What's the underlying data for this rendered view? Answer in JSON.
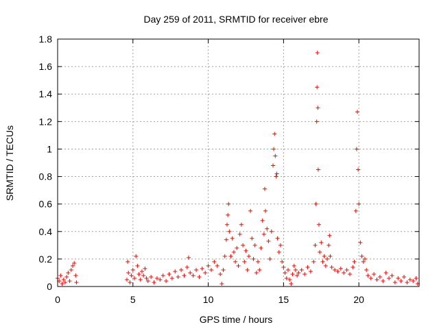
{
  "chart_data": {
    "type": "scatter",
    "title": "Day 259 of 2011, SRMTID for receiver ebre",
    "xlabel": "GPS time / hours",
    "ylabel": "SRMTID / TECUs",
    "xlim": [
      0,
      24
    ],
    "ylim": [
      0,
      1.8
    ],
    "x_ticks": [
      0,
      5,
      10,
      15,
      20
    ],
    "y_ticks": [
      0,
      0.2,
      0.4,
      0.6,
      0.8,
      1,
      1.2,
      1.4,
      1.6,
      1.8
    ],
    "x_tick_labels": [
      "0",
      "5",
      "10",
      "15",
      "20"
    ],
    "y_tick_labels": [
      "0",
      "0.2",
      "0.4",
      "0.6",
      "0.8",
      "1",
      "1.2",
      "1.4",
      "1.6",
      "1.8"
    ],
    "grid": true,
    "marker": "plus",
    "series": [
      {
        "name": "ebre",
        "color": "#ff0000",
        "points": [
          [
            0.0,
            0.06
          ],
          [
            0.1,
            0.04
          ],
          [
            0.2,
            0.08
          ],
          [
            0.3,
            0.02
          ],
          [
            0.4,
            0.05
          ],
          [
            0.5,
            0.03
          ],
          [
            0.6,
            0.07
          ],
          [
            0.7,
            0.1
          ],
          [
            0.8,
            0.04
          ],
          [
            0.9,
            0.12
          ],
          [
            1.0,
            0.15
          ],
          [
            1.1,
            0.17
          ],
          [
            1.2,
            0.08
          ],
          [
            1.25,
            0.03
          ],
          [
            4.6,
            0.05
          ],
          [
            4.65,
            0.18
          ],
          [
            4.7,
            0.1
          ],
          [
            4.8,
            0.03
          ],
          [
            4.9,
            0.08
          ],
          [
            5.0,
            0.12
          ],
          [
            5.1,
            0.06
          ],
          [
            5.2,
            0.22
          ],
          [
            5.3,
            0.15
          ],
          [
            5.4,
            0.09
          ],
          [
            5.5,
            0.05
          ],
          [
            5.6,
            0.11
          ],
          [
            5.7,
            0.08
          ],
          [
            5.8,
            0.13
          ],
          [
            5.9,
            0.06
          ],
          [
            6.0,
            0.04
          ],
          [
            6.2,
            0.07
          ],
          [
            6.4,
            0.03
          ],
          [
            6.6,
            0.06
          ],
          [
            6.8,
            0.05
          ],
          [
            7.0,
            0.08
          ],
          [
            7.2,
            0.04
          ],
          [
            7.4,
            0.09
          ],
          [
            7.6,
            0.06
          ],
          [
            7.8,
            0.11
          ],
          [
            8.0,
            0.07
          ],
          [
            8.2,
            0.12
          ],
          [
            8.4,
            0.08
          ],
          [
            8.6,
            0.14
          ],
          [
            8.7,
            0.21
          ],
          [
            8.8,
            0.1
          ],
          [
            9.0,
            0.08
          ],
          [
            9.2,
            0.12
          ],
          [
            9.4,
            0.07
          ],
          [
            9.6,
            0.13
          ],
          [
            9.8,
            0.1
          ],
          [
            10.0,
            0.15
          ],
          [
            10.2,
            0.12
          ],
          [
            10.4,
            0.18
          ],
          [
            10.6,
            0.15
          ],
          [
            10.8,
            0.09
          ],
          [
            10.9,
            0.02
          ],
          [
            11.0,
            0.12
          ],
          [
            11.1,
            0.22
          ],
          [
            11.2,
            0.34
          ],
          [
            11.25,
            0.45
          ],
          [
            11.3,
            0.52
          ],
          [
            11.35,
            0.6
          ],
          [
            11.4,
            0.4
          ],
          [
            11.5,
            0.22
          ],
          [
            11.6,
            0.35
          ],
          [
            11.7,
            0.25
          ],
          [
            11.8,
            0.18
          ],
          [
            11.9,
            0.28
          ],
          [
            12.0,
            0.15
          ],
          [
            12.1,
            0.38
          ],
          [
            12.2,
            0.45
          ],
          [
            12.3,
            0.3
          ],
          [
            12.4,
            0.18
          ],
          [
            12.5,
            0.26
          ],
          [
            12.6,
            0.12
          ],
          [
            12.7,
            0.22
          ],
          [
            12.8,
            0.55
          ],
          [
            12.9,
            0.35
          ],
          [
            13.0,
            0.2
          ],
          [
            13.1,
            0.3
          ],
          [
            13.2,
            0.1
          ],
          [
            13.3,
            0.18
          ],
          [
            13.4,
            0.12
          ],
          [
            13.5,
            0.28
          ],
          [
            13.6,
            0.48
          ],
          [
            13.7,
            0.38
          ],
          [
            13.75,
            0.71
          ],
          [
            13.8,
            0.55
          ],
          [
            13.9,
            0.42
          ],
          [
            14.0,
            0.33
          ],
          [
            14.1,
            0.2
          ],
          [
            14.2,
            0.4
          ],
          [
            14.3,
            0.88
          ],
          [
            14.35,
            1.0
          ],
          [
            14.4,
            1.11
          ],
          [
            14.45,
            0.95
          ],
          [
            14.5,
            0.8
          ],
          [
            14.55,
            0.82
          ],
          [
            14.6,
            0.35
          ],
          [
            14.7,
            0.25
          ],
          [
            14.8,
            0.3
          ],
          [
            14.9,
            0.18
          ],
          [
            15.0,
            0.14
          ],
          [
            15.1,
            0.1
          ],
          [
            15.2,
            0.06
          ],
          [
            15.3,
            0.12
          ],
          [
            15.4,
            0.05
          ],
          [
            15.5,
            0.02
          ],
          [
            15.6,
            0.09
          ],
          [
            15.7,
            0.15
          ],
          [
            15.8,
            0.12
          ],
          [
            15.9,
            0.08
          ],
          [
            16.0,
            0.1
          ],
          [
            16.2,
            0.12
          ],
          [
            16.4,
            0.09
          ],
          [
            16.6,
            0.14
          ],
          [
            16.8,
            0.11
          ],
          [
            17.0,
            0.18
          ],
          [
            17.1,
            0.3
          ],
          [
            17.15,
            0.6
          ],
          [
            17.2,
            1.2
          ],
          [
            17.22,
            1.45
          ],
          [
            17.25,
            1.7
          ],
          [
            17.28,
            1.3
          ],
          [
            17.3,
            0.85
          ],
          [
            17.35,
            0.45
          ],
          [
            17.4,
            0.25
          ],
          [
            17.5,
            0.32
          ],
          [
            17.6,
            0.18
          ],
          [
            17.7,
            0.22
          ],
          [
            17.8,
            0.15
          ],
          [
            17.9,
            0.2
          ],
          [
            18.0,
            0.3
          ],
          [
            18.05,
            0.37
          ],
          [
            18.1,
            0.22
          ],
          [
            18.2,
            0.14
          ],
          [
            18.4,
            0.12
          ],
          [
            18.6,
            0.11
          ],
          [
            18.8,
            0.13
          ],
          [
            19.0,
            0.1
          ],
          [
            19.2,
            0.12
          ],
          [
            19.4,
            0.09
          ],
          [
            19.6,
            0.14
          ],
          [
            19.7,
            0.18
          ],
          [
            19.8,
            0.55
          ],
          [
            19.85,
            1.0
          ],
          [
            19.9,
            1.27
          ],
          [
            19.95,
            0.85
          ],
          [
            20.0,
            0.6
          ],
          [
            20.1,
            0.32
          ],
          [
            20.2,
            0.22
          ],
          [
            20.3,
            0.18
          ],
          [
            20.4,
            0.2
          ],
          [
            20.5,
            0.12
          ],
          [
            20.6,
            0.08
          ],
          [
            20.8,
            0.06
          ],
          [
            21.0,
            0.09
          ],
          [
            21.2,
            0.05
          ],
          [
            21.4,
            0.07
          ],
          [
            21.6,
            0.04
          ],
          [
            21.8,
            0.1
          ],
          [
            22.0,
            0.06
          ],
          [
            22.2,
            0.08
          ],
          [
            22.4,
            0.03
          ],
          [
            22.6,
            0.06
          ],
          [
            22.8,
            0.04
          ],
          [
            23.0,
            0.07
          ],
          [
            23.2,
            0.03
          ],
          [
            23.4,
            0.05
          ],
          [
            23.6,
            0.04
          ],
          [
            23.8,
            0.06
          ],
          [
            23.9,
            0.02
          ]
        ]
      }
    ]
  }
}
